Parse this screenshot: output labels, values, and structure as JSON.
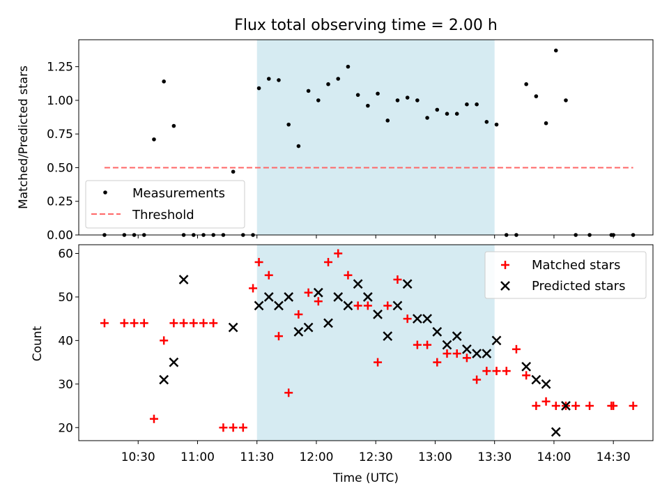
{
  "chart_data": [
    {
      "type": "scatter",
      "title": "Flux total observing time = 2.00 h",
      "ylabel": "Matched/Predicted stars",
      "xlabel": "",
      "ylim": [
        0,
        1.45
      ],
      "xlim_minutes": [
        600,
        890
      ],
      "yticks": [
        "0.00",
        "0.25",
        "0.50",
        "0.75",
        "1.00",
        "1.25"
      ],
      "ytick_values": [
        0,
        0.25,
        0.5,
        0.75,
        1.0,
        1.25
      ],
      "shaded_region": {
        "start": "11:30",
        "end": "13:30",
        "color": "#add8e6"
      },
      "threshold": {
        "name": "Threshold",
        "value": 0.5,
        "x_start": "10:13",
        "x_end": "14:40",
        "color": "#ff6666",
        "style": "dashed"
      },
      "legend": {
        "position": "lower-left",
        "entries": [
          "Measurements",
          "Threshold"
        ]
      },
      "series": [
        {
          "name": "Measurements",
          "color": "#000000",
          "marker": "dot",
          "x": [
            "10:13",
            "10:23",
            "10:28",
            "10:33",
            "10:38",
            "10:43",
            "10:48",
            "10:53",
            "10:58",
            "11:03",
            "11:08",
            "11:13",
            "11:18",
            "11:23",
            "11:28",
            "11:31",
            "11:36",
            "11:41",
            "11:46",
            "11:51",
            "11:56",
            "12:01",
            "12:06",
            "12:11",
            "12:16",
            "12:21",
            "12:26",
            "12:31",
            "12:36",
            "12:41",
            "12:46",
            "12:51",
            "12:56",
            "13:01",
            "13:06",
            "13:11",
            "13:16",
            "13:21",
            "13:26",
            "13:31",
            "13:36",
            "13:41",
            "13:46",
            "13:51",
            "13:56",
            "14:01",
            "14:06",
            "14:11",
            "14:18",
            "14:29",
            "14:30",
            "14:40"
          ],
          "y": [
            0,
            0,
            0,
            0,
            0.71,
            1.14,
            0.81,
            0,
            0,
            0,
            0,
            0,
            0.47,
            0,
            0,
            1.09,
            1.16,
            1.15,
            0.82,
            0.66,
            1.07,
            1.0,
            1.12,
            1.16,
            1.25,
            1.04,
            0.96,
            1.05,
            0.85,
            1.0,
            1.02,
            1.0,
            0.87,
            0.93,
            0.9,
            0.9,
            0.97,
            0.97,
            0.84,
            0.82,
            0,
            0,
            1.12,
            1.03,
            0.83,
            1.37,
            1.0,
            0,
            0,
            0,
            0,
            0
          ]
        }
      ]
    },
    {
      "type": "scatter",
      "title": "",
      "xlabel": "Time (UTC)",
      "ylabel": "Count",
      "ylim": [
        17,
        62
      ],
      "xlim_minutes": [
        600,
        890
      ],
      "xticks": [
        "10:30",
        "11:00",
        "11:30",
        "12:00",
        "12:30",
        "13:00",
        "13:30",
        "14:00",
        "14:30"
      ],
      "yticks": [
        "20",
        "30",
        "40",
        "50",
        "60"
      ],
      "ytick_values": [
        20,
        30,
        40,
        50,
        60
      ],
      "shaded_region": {
        "start": "11:30",
        "end": "13:30",
        "color": "#add8e6"
      },
      "legend": {
        "position": "top-right",
        "entries": [
          "Matched stars",
          "Predicted stars"
        ]
      },
      "series": [
        {
          "name": "Matched stars",
          "color": "#ff0000",
          "marker": "plus",
          "x": [
            "10:13",
            "10:23",
            "10:28",
            "10:33",
            "10:38",
            "10:43",
            "10:48",
            "10:53",
            "10:58",
            "11:03",
            "11:08",
            "11:13",
            "11:18",
            "11:23",
            "11:28",
            "11:31",
            "11:36",
            "11:41",
            "11:46",
            "11:51",
            "11:56",
            "12:01",
            "12:06",
            "12:11",
            "12:16",
            "12:21",
            "12:26",
            "12:31",
            "12:36",
            "12:41",
            "12:46",
            "12:51",
            "12:56",
            "13:01",
            "13:06",
            "13:11",
            "13:16",
            "13:21",
            "13:26",
            "13:31",
            "13:36",
            "13:41",
            "13:46",
            "13:51",
            "13:56",
            "14:01",
            "14:06",
            "14:11",
            "14:18",
            "14:29",
            "14:30",
            "14:40"
          ],
          "y": [
            44,
            44,
            44,
            44,
            22,
            40,
            44,
            44,
            44,
            44,
            44,
            20,
            20,
            20,
            52,
            58,
            55,
            41,
            28,
            46,
            51,
            49,
            58,
            60,
            55,
            48,
            48,
            35,
            48,
            54,
            45,
            39,
            39,
            35,
            37,
            37,
            36,
            31,
            33,
            33,
            33,
            38,
            32,
            25,
            26,
            25,
            25,
            25,
            25,
            25,
            25,
            25
          ]
        },
        {
          "name": "Predicted stars",
          "color": "#000000",
          "marker": "x",
          "x": [
            "10:43",
            "10:48",
            "10:53",
            "11:18",
            "11:31",
            "11:36",
            "11:41",
            "11:46",
            "11:51",
            "11:56",
            "12:01",
            "12:06",
            "12:11",
            "12:16",
            "12:21",
            "12:26",
            "12:31",
            "12:36",
            "12:41",
            "12:46",
            "12:51",
            "12:56",
            "13:01",
            "13:06",
            "13:11",
            "13:16",
            "13:21",
            "13:26",
            "13:31",
            "13:46",
            "13:51",
            "13:56",
            "14:01",
            "14:06"
          ],
          "y": [
            31,
            35,
            54,
            43,
            48,
            50,
            48,
            50,
            42,
            43,
            51,
            44,
            50,
            48,
            53,
            50,
            46,
            41,
            48,
            53,
            45,
            45,
            42,
            39,
            41,
            38,
            37,
            37,
            40,
            34,
            31,
            30,
            19,
            25
          ]
        }
      ]
    }
  ]
}
